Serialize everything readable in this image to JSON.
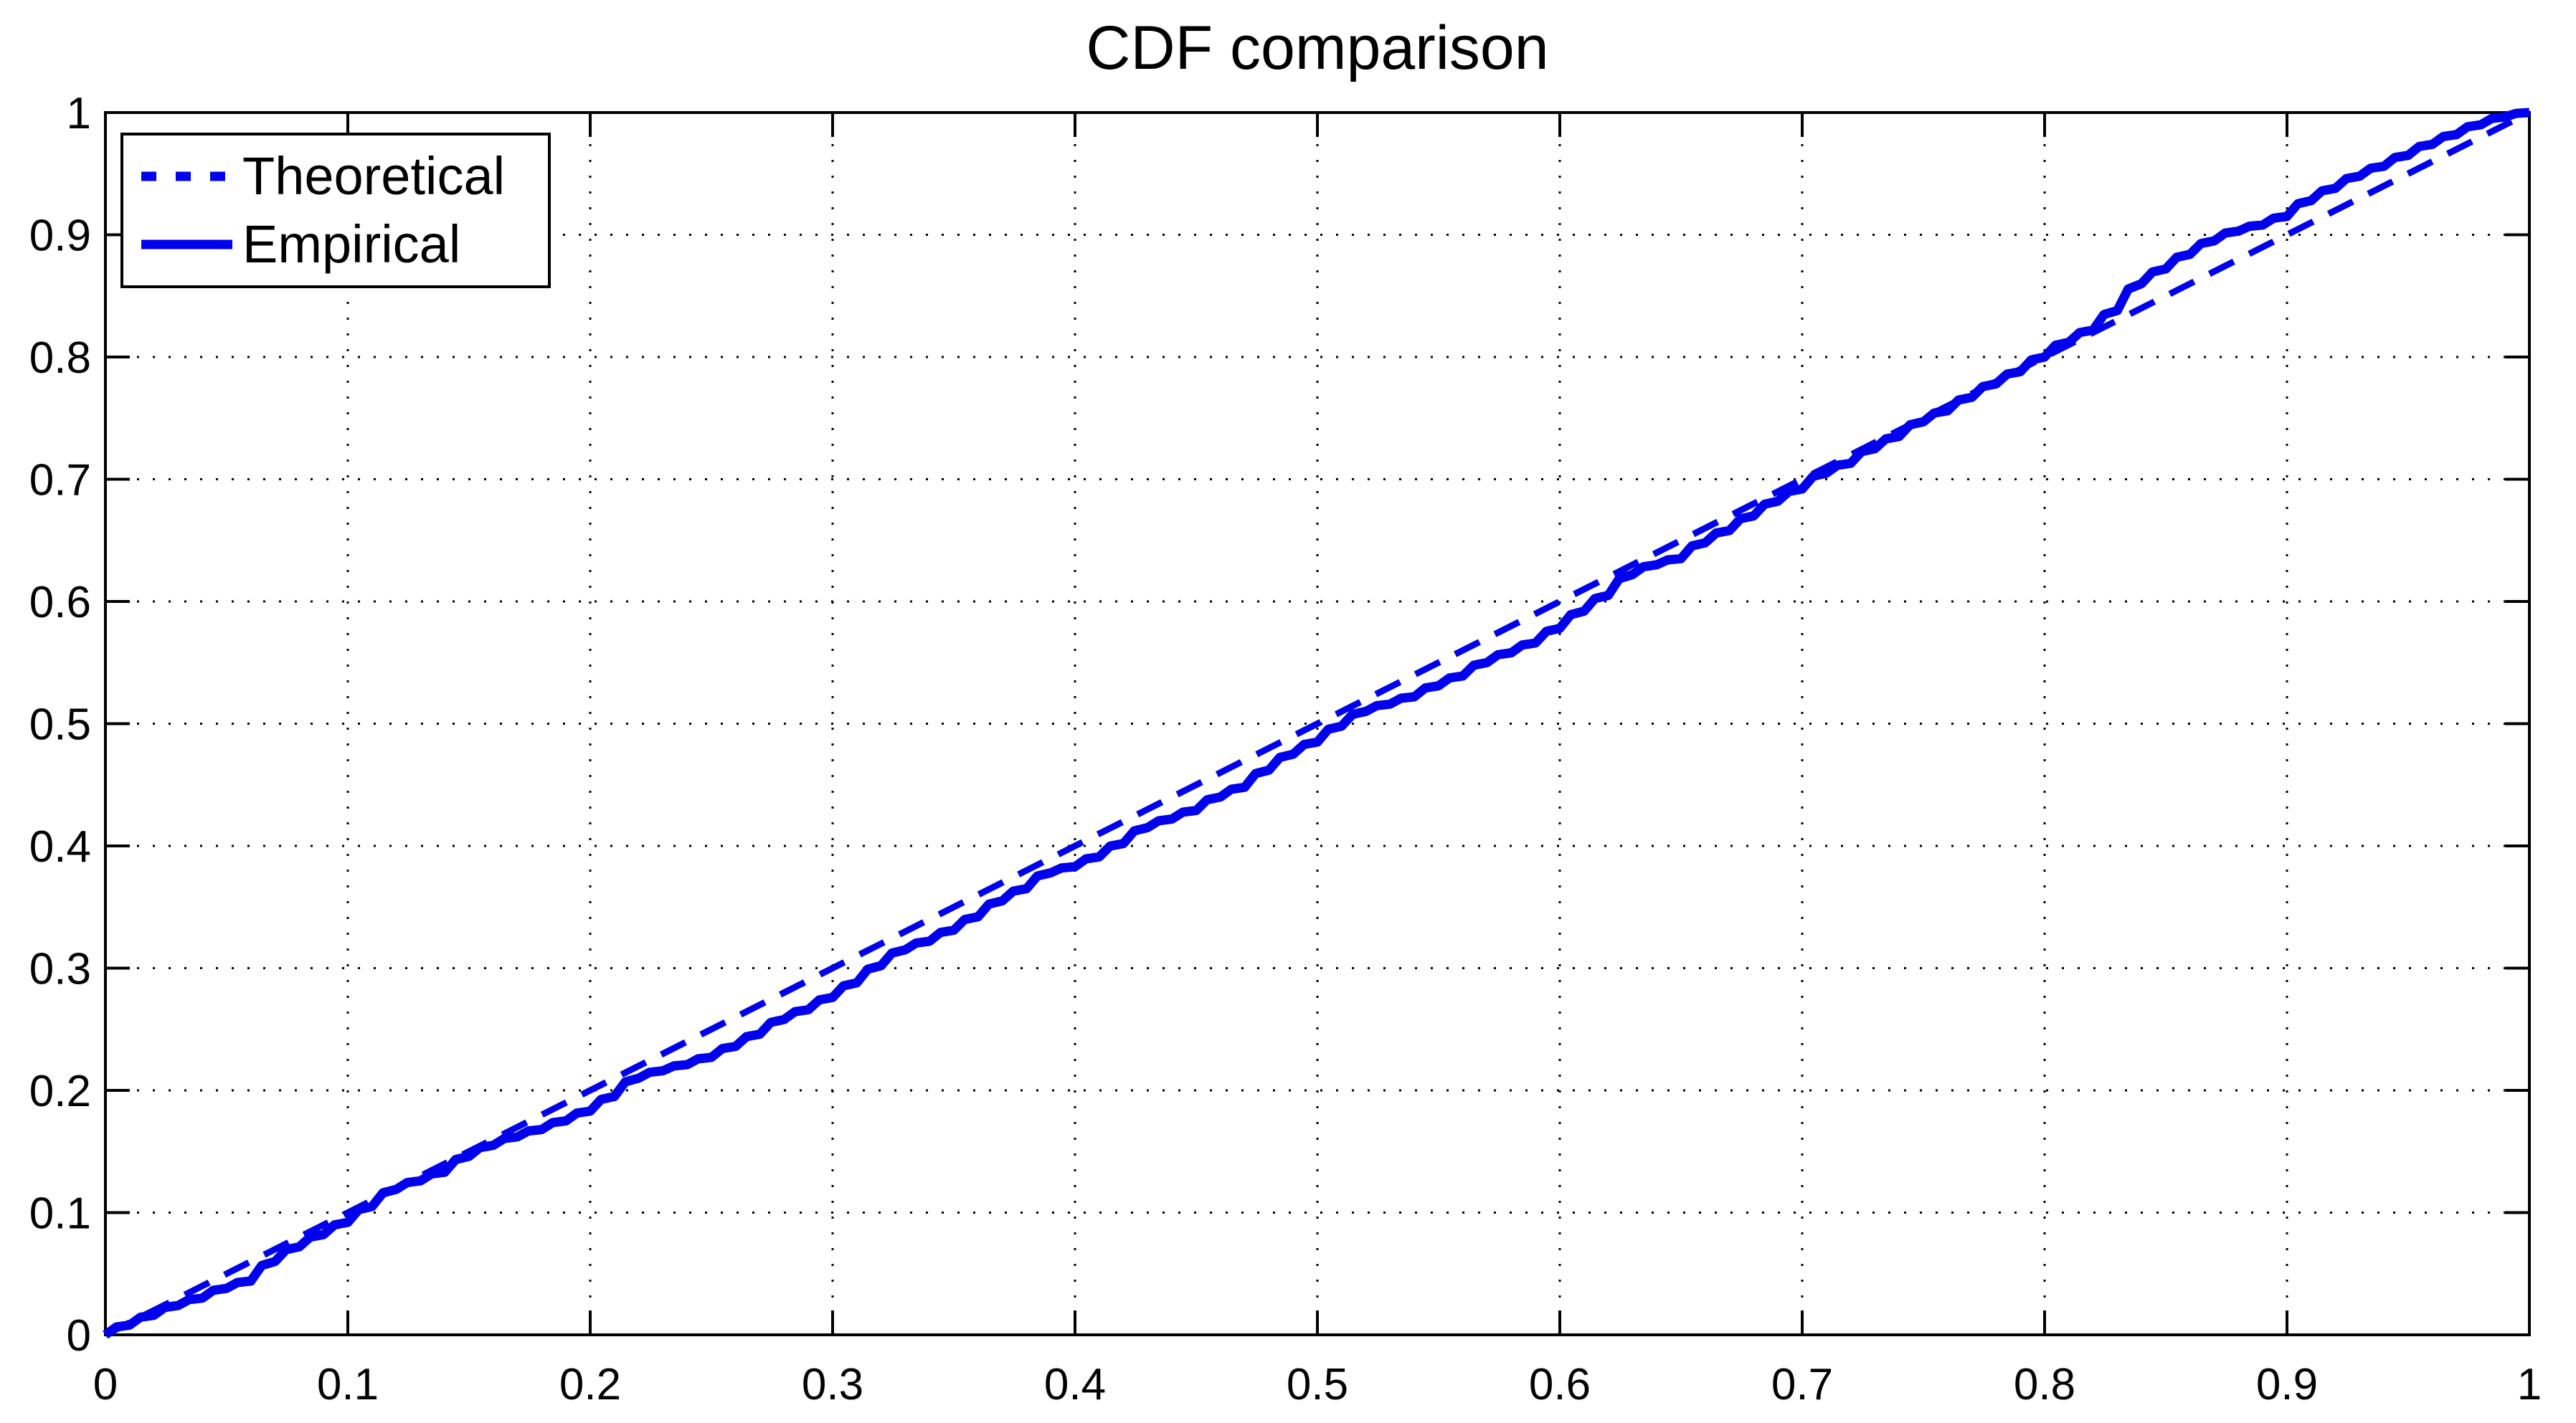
{
  "figure": {
    "title": "CDF comparison",
    "background_color": "#ffffff",
    "axis_color": "#000000",
    "line_color": "#0000ee"
  },
  "chart_data": {
    "type": "line",
    "title": "CDF comparison",
    "xlabel": "",
    "ylabel": "",
    "xlim": [
      0,
      1
    ],
    "ylim": [
      0,
      1
    ],
    "grid": "dotted",
    "legend_position": "top-left",
    "xticks": {
      "values": [
        0,
        0.1,
        0.2,
        0.3,
        0.4,
        0.5,
        0.6,
        0.7,
        0.8,
        0.9,
        1
      ],
      "labels": [
        "0",
        "0.1",
        "0.2",
        "0.3",
        "0.4",
        "0.5",
        "0.6",
        "0.7",
        "0.8",
        "0.9",
        "1"
      ]
    },
    "yticks": {
      "values": [
        0,
        0.1,
        0.2,
        0.3,
        0.4,
        0.5,
        0.6,
        0.7,
        0.8,
        0.9,
        1
      ],
      "labels": [
        "0",
        "0.1",
        "0.2",
        "0.3",
        "0.4",
        "0.5",
        "0.6",
        "0.7",
        "0.8",
        "0.9",
        "1"
      ]
    },
    "series": [
      {
        "name": "Theoretical",
        "color": "#0000ee",
        "line": "dashed",
        "x": [
          0,
          1
        ],
        "y": [
          0,
          1
        ]
      },
      {
        "name": "Empirical",
        "color": "#0000ee",
        "line": "solid",
        "x": [
          0.0,
          0.01,
          0.02,
          0.03,
          0.04,
          0.05,
          0.06,
          0.07,
          0.08,
          0.09,
          0.1,
          0.11,
          0.12,
          0.13,
          0.14,
          0.15,
          0.16,
          0.17,
          0.18,
          0.19,
          0.2,
          0.21,
          0.22,
          0.23,
          0.24,
          0.25,
          0.26,
          0.27,
          0.28,
          0.29,
          0.3,
          0.31,
          0.32,
          0.33,
          0.34,
          0.35,
          0.36,
          0.37,
          0.38,
          0.39,
          0.4,
          0.41,
          0.42,
          0.43,
          0.44,
          0.45,
          0.46,
          0.47,
          0.48,
          0.49,
          0.5,
          0.51,
          0.52,
          0.53,
          0.54,
          0.55,
          0.56,
          0.57,
          0.58,
          0.59,
          0.6,
          0.61,
          0.62,
          0.63,
          0.64,
          0.65,
          0.66,
          0.67,
          0.68,
          0.69,
          0.7,
          0.71,
          0.72,
          0.73,
          0.74,
          0.75,
          0.76,
          0.77,
          0.78,
          0.79,
          0.8,
          0.81,
          0.82,
          0.83,
          0.84,
          0.85,
          0.86,
          0.87,
          0.88,
          0.89,
          0.9,
          0.91,
          0.92,
          0.93,
          0.94,
          0.95,
          0.96,
          0.97,
          0.98,
          0.99,
          1.0
        ],
        "y": [
          0.0,
          0.008,
          0.016,
          0.024,
          0.03,
          0.038,
          0.044,
          0.06,
          0.072,
          0.082,
          0.092,
          0.105,
          0.119,
          0.126,
          0.133,
          0.146,
          0.155,
          0.162,
          0.168,
          0.175,
          0.183,
          0.195,
          0.21,
          0.216,
          0.221,
          0.227,
          0.236,
          0.246,
          0.258,
          0.266,
          0.276,
          0.288,
          0.302,
          0.315,
          0.322,
          0.331,
          0.342,
          0.355,
          0.365,
          0.378,
          0.383,
          0.391,
          0.402,
          0.415,
          0.422,
          0.429,
          0.44,
          0.448,
          0.462,
          0.475,
          0.485,
          0.498,
          0.51,
          0.516,
          0.522,
          0.531,
          0.539,
          0.55,
          0.558,
          0.566,
          0.578,
          0.592,
          0.605,
          0.622,
          0.63,
          0.635,
          0.648,
          0.658,
          0.67,
          0.682,
          0.692,
          0.705,
          0.713,
          0.725,
          0.735,
          0.747,
          0.756,
          0.767,
          0.778,
          0.788,
          0.8,
          0.812,
          0.822,
          0.838,
          0.86,
          0.872,
          0.884,
          0.895,
          0.903,
          0.908,
          0.915,
          0.928,
          0.938,
          0.948,
          0.956,
          0.965,
          0.974,
          0.982,
          0.99,
          0.9965,
          1.0
        ]
      }
    ]
  }
}
